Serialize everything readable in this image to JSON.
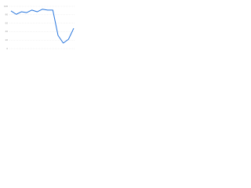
{
  "chart_data": {
    "type": "line",
    "categories": [
      null,
      null,
      null,
      null,
      null,
      null,
      null,
      null,
      null,
      null,
      null,
      null,
      null
    ],
    "series": [
      {
        "color": "#2876dd",
        "values": [
          89,
          81,
          87,
          85,
          91,
          87,
          93,
          91,
          91,
          31,
          13,
          22,
          48
        ]
      }
    ],
    "ylim": [
      0,
      100
    ],
    "yticks": [
      0,
      20,
      40,
      60,
      80,
      100
    ],
    "grid": true
  }
}
